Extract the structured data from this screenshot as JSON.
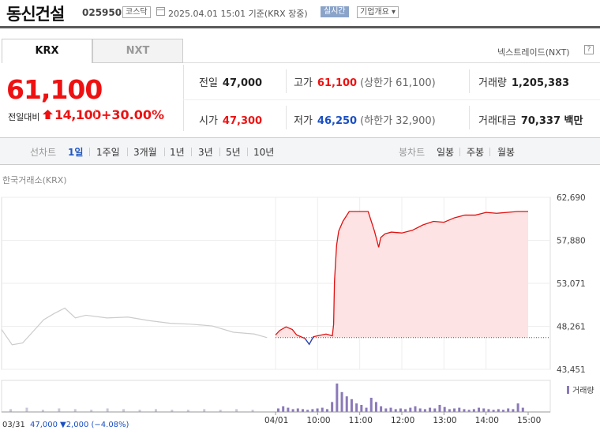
{
  "header": {
    "stock_name": "동신건설",
    "stock_code": "025950",
    "market": "코스닥",
    "datetime": "2025.04.01 15:01 기준(KRX 장중)",
    "realtime_label": "실시간",
    "company_label": "기업개요 ▾"
  },
  "tabs": {
    "krx": "KRX",
    "nxt": "NXT"
  },
  "nxt_link": "넥스트레이드(NXT)",
  "help": "?",
  "price": {
    "current": "61,100",
    "change_label": "전일대비",
    "change_amount": "14,100",
    "change_rate": "+30.00%"
  },
  "stats": {
    "prev_close": {
      "label": "전일",
      "value": "47,000"
    },
    "high": {
      "label": "고가",
      "value": "61,100",
      "sub": "(상한가 61,100)"
    },
    "volume": {
      "label": "거래량",
      "value": "1,205,383"
    },
    "open": {
      "label": "시가",
      "value": "47,300"
    },
    "low": {
      "label": "저가",
      "value": "46,250",
      "sub": "(하한가 32,900)"
    },
    "amount": {
      "label": "거래대금",
      "value": "70,337 백만"
    }
  },
  "periods": {
    "line_chart": "선차트",
    "items": [
      "1일",
      "1주일",
      "3개월",
      "1년",
      "3년",
      "5년",
      "10년"
    ],
    "candle_chart": "봉차트",
    "candles": [
      "일봉",
      "주봉",
      "월봉"
    ]
  },
  "exchange_label": "한국거래소(KRX)",
  "volume_legend": "거래량",
  "footer": {
    "date": "03/31",
    "price": "47,000",
    "change": "▼2,000 (−4.08%)"
  },
  "colors": {
    "up": "#e11111",
    "down": "#1a4fc2",
    "prev_day": "#cccccc",
    "volume": "#8b79b8",
    "fill": "#fde3e3"
  },
  "chart_data": {
    "type": "line",
    "title": "",
    "xlabel": "",
    "ylabel": "",
    "ylim": [
      43451,
      62690
    ],
    "y_ticks": [
      "62,690",
      "57,880",
      "53,071",
      "48,261",
      "43,451"
    ],
    "x_ticks": [
      "03/31",
      "04/01",
      "10:00",
      "11:00",
      "12:00",
      "13:00",
      "14:00",
      "15:00"
    ],
    "prev_close": 47000,
    "series": [
      {
        "session": "03/31",
        "x_hours": [
          9.0,
          9.25,
          9.5,
          9.75,
          10.0,
          10.25,
          10.5,
          10.75,
          11.0,
          11.5,
          12.0,
          12.5,
          13.0,
          13.5,
          14.0,
          14.5,
          15.0,
          15.3
        ],
        "values": [
          47900,
          46200,
          46400,
          47700,
          49000,
          49700,
          50300,
          49200,
          49500,
          49200,
          49300,
          48900,
          48600,
          48500,
          48300,
          47600,
          47400,
          47000
        ]
      },
      {
        "session": "04/01",
        "x_hours": [
          9.0,
          9.1,
          9.25,
          9.4,
          9.5,
          9.6,
          9.7,
          9.8,
          9.9,
          10.0,
          10.2,
          10.35,
          10.38,
          10.4,
          10.45,
          10.5,
          10.6,
          10.75,
          10.9,
          11.0,
          11.2,
          11.35,
          11.45,
          11.5,
          11.6,
          11.75,
          12.0,
          12.25,
          12.5,
          12.75,
          13.0,
          13.25,
          13.5,
          13.75,
          14.0,
          14.25,
          14.5,
          14.75,
          15.0
        ],
        "values": [
          47300,
          47800,
          48200,
          47900,
          47300,
          47100,
          46900,
          46250,
          47100,
          47200,
          47400,
          47200,
          48500,
          53300,
          57300,
          58900,
          60000,
          61100,
          61100,
          61100,
          61100,
          58900,
          57100,
          58200,
          58600,
          58800,
          58700,
          59000,
          59600,
          60000,
          59900,
          60400,
          60700,
          60700,
          61000,
          60900,
          61000,
          61100,
          61100
        ]
      }
    ],
    "volume": {
      "session_03_31": [
        4,
        6,
        3,
        5,
        4,
        3,
        5,
        4,
        3,
        4,
        3,
        3,
        4,
        3,
        4,
        3
      ],
      "session_04_01": [
        5,
        8,
        6,
        4,
        5,
        4,
        3,
        4,
        5,
        6,
        4,
        14,
        40,
        28,
        22,
        18,
        12,
        10,
        6,
        20,
        14,
        8,
        5,
        6,
        4,
        5,
        4,
        6,
        8,
        5,
        4,
        6,
        5,
        10,
        7,
        4,
        5,
        6,
        4,
        3,
        4,
        6,
        5,
        4,
        3,
        4,
        3,
        5,
        4,
        12,
        6
      ]
    }
  }
}
